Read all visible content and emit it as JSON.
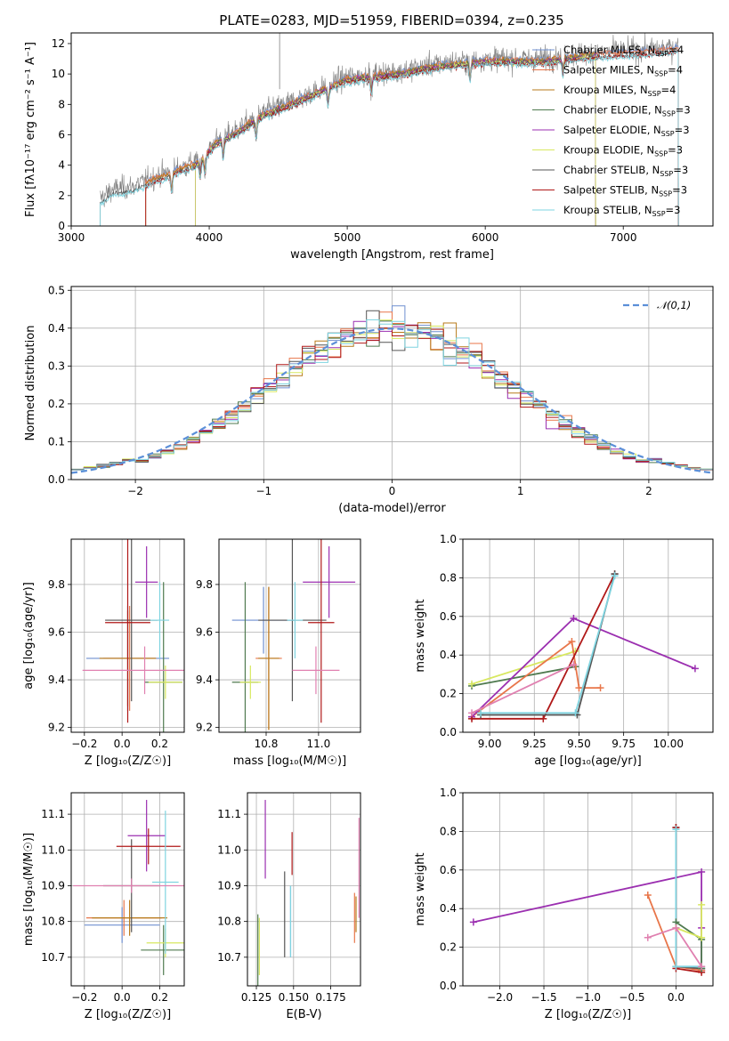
{
  "figure": {
    "title": "PLATE=0283, MJD=51959, FIBERID=0394, z=0.235"
  },
  "colors": {
    "Chabrier MILES": "#6f8fd0",
    "Salpeter MILES": "#e8764a",
    "Kroupa MILES": "#b77a1a",
    "Chabrier ELODIE": "#4f7a4f",
    "Salpeter ELODIE": "#9b2fb0",
    "Kroupa ELODIE": "#d8e860",
    "Chabrier STELIB": "#555555",
    "Salpeter STELIB": "#b01818",
    "Kroupa STELIB": "#7fd4e0",
    "data": "#808080",
    "normal": "#5b8fd8"
  },
  "legend_spectrum": [
    {
      "model": "Chabrier MILES",
      "label": "Chabrier MILES, N",
      "sub": "SSP",
      "suffix": "=4"
    },
    {
      "model": "Salpeter MILES",
      "label": "Salpeter MILES, N",
      "sub": "SSP",
      "suffix": "=4"
    },
    {
      "model": "Kroupa MILES",
      "label": "Kroupa MILES, N",
      "sub": "SSP",
      "suffix": "=4"
    },
    {
      "model": "Chabrier ELODIE",
      "label": "Chabrier ELODIE, N",
      "sub": "SSP",
      "suffix": "=3"
    },
    {
      "model": "Salpeter ELODIE",
      "label": "Salpeter ELODIE, N",
      "sub": "SSP",
      "suffix": "=3"
    },
    {
      "model": "Kroupa ELODIE",
      "label": "Kroupa ELODIE, N",
      "sub": "SSP",
      "suffix": "=3"
    },
    {
      "model": "Chabrier STELIB",
      "label": "Chabrier STELIB, N",
      "sub": "SSP",
      "suffix": "=3"
    },
    {
      "model": "Salpeter STELIB",
      "label": "Salpeter STELIB, N",
      "sub": "SSP",
      "suffix": "=3"
    },
    {
      "model": "Kroupa STELIB",
      "label": "Kroupa STELIB, N",
      "sub": "SSP",
      "suffix": "=3"
    }
  ],
  "chart_data": [
    {
      "id": "spectrum",
      "type": "line",
      "title": "PLATE=0283, MJD=51959, FIBERID=0394, z=0.235",
      "xlabel": "wavelength [Angstrom, rest frame]",
      "ylabel": "Flux [fλ10⁻¹⁷ erg cm⁻² s⁻¹ A⁻¹]",
      "xlim": [
        3000,
        7650
      ],
      "ylim": [
        0,
        12.7
      ],
      "xticks": [
        3000,
        4000,
        5000,
        6000,
        7000
      ],
      "yticks": [
        0,
        2,
        4,
        6,
        8,
        10,
        12
      ],
      "continuum": {
        "x": [
          3210,
          3300,
          3450,
          3600,
          3700,
          3800,
          3900,
          3950,
          4050,
          4200,
          4400,
          4600,
          4800,
          5000,
          5200,
          5400,
          5600,
          5800,
          6000,
          6200,
          6400,
          6600,
          6800,
          7000,
          7200,
          7400
        ],
        "y": [
          1.8,
          2.4,
          2.6,
          3.2,
          3.5,
          3.9,
          4.2,
          4.6,
          5.6,
          6.3,
          7.5,
          8.2,
          9.0,
          9.8,
          10.0,
          10.2,
          10.6,
          10.8,
          11.0,
          11.0,
          11.0,
          11.2,
          11.4,
          11.5,
          11.6,
          11.8
        ]
      },
      "model_ranges": {
        "Chabrier MILES": [
          3540,
          7400
        ],
        "Salpeter MILES": [
          3540,
          7400
        ],
        "Kroupa MILES": [
          3540,
          6800
        ],
        "Chabrier ELODIE": [
          3900,
          6800
        ],
        "Salpeter ELODIE": [
          3900,
          6800
        ],
        "Kroupa ELODIE": [
          3900,
          6800
        ],
        "Chabrier STELIB": [
          3210,
          7400
        ],
        "Salpeter STELIB": [
          3540,
          7400
        ],
        "Kroupa STELIB": [
          3210,
          7400
        ]
      }
    },
    {
      "id": "residuals",
      "type": "line",
      "xlabel": "(data-model)/error",
      "ylabel": "Normed distribution",
      "xlim": [
        -2.5,
        2.5
      ],
      "ylim": [
        0,
        0.51
      ],
      "xticks": [
        -2,
        -1,
        0,
        1,
        2
      ],
      "yticks": [
        0.0,
        0.1,
        0.2,
        0.3,
        0.4,
        0.5
      ],
      "bin_edges_start": -2.5,
      "bin_width": 0.1,
      "bins": 50,
      "legend": "𝒩(0,1)",
      "normal": {
        "mean": 0,
        "sigma": 1
      }
    },
    {
      "id": "age-vs-Z",
      "type": "scatter",
      "xlabel": "Z [log₁₀(Z/Z☉)]",
      "ylabel": "age  [log₁₀(age/yr)]",
      "xlim": [
        -0.27,
        0.33
      ],
      "ylim": [
        9.18,
        9.99
      ],
      "xticks": [
        -0.2,
        0.0,
        0.2
      ],
      "yticks": [
        9.2,
        9.4,
        9.6,
        9.8
      ],
      "points": [
        {
          "model": "Chabrier MILES",
          "x": 0.03,
          "y": 9.49,
          "xerr": 0.22,
          "yerr": 0.22
        },
        {
          "model": "Salpeter MILES",
          "x": 0.04,
          "y": 9.49,
          "xerr": 0.14,
          "yerr": 0.22
        },
        {
          "model": "Kroupa MILES",
          "x": 0.03,
          "y": 9.49,
          "xerr": 0.15,
          "yerr": 0.2
        },
        {
          "model": "Chabrier ELODIE",
          "x": 0.22,
          "y": 9.39,
          "xerr": 0.1,
          "yerr": 0.42
        },
        {
          "model": "Salpeter ELODIE",
          "x": 0.13,
          "y": 9.81,
          "xerr": 0.06,
          "yerr": 0.15
        },
        {
          "model": "Kroupa ELODIE",
          "x": 0.23,
          "y": 9.39,
          "xerr": 0.09,
          "yerr": 0.07
        },
        {
          "model": "Chabrier STELIB",
          "x": 0.05,
          "y": 9.65,
          "xerr": 0.14,
          "yerr": 0.34
        },
        {
          "model": "Salpeter STELIB",
          "x": 0.03,
          "y": 9.64,
          "xerr": 0.12,
          "yerr": 0.42
        },
        {
          "model": "Kroupa STELIB",
          "x": 0.2,
          "y": 9.65,
          "xerr": 0.05,
          "yerr": 0.16
        }
      ],
      "extra_points": [
        {
          "model": "Salpeter ELODIE",
          "x": 0.12,
          "y": 9.44,
          "xerr": 0.33,
          "yerr": 0.1,
          "color_override": "#e080b0"
        }
      ]
    },
    {
      "id": "age-vs-mass",
      "type": "scatter",
      "xlabel": "mass [log₁₀(M/M☉)]",
      "ylabel": "",
      "xlim": [
        10.62,
        11.16
      ],
      "ylim": [
        9.18,
        9.99
      ],
      "xticks": [
        10.8,
        11.0
      ],
      "yticks": [
        9.2,
        9.4,
        9.6,
        9.8
      ],
      "points": [
        {
          "model": "Chabrier MILES",
          "x": 10.79,
          "y": 9.65,
          "xerr": 0.12,
          "yerr": 0.14
        },
        {
          "model": "Salpeter MILES",
          "x": 10.81,
          "y": 9.49,
          "xerr": 0.05,
          "yerr": 0.3
        },
        {
          "model": "Kroupa MILES",
          "x": 10.81,
          "y": 9.49,
          "xerr": 0.04,
          "yerr": 0.3
        },
        {
          "model": "Chabrier ELODIE",
          "x": 10.72,
          "y": 9.39,
          "xerr": 0.05,
          "yerr": 0.42
        },
        {
          "model": "Salpeter ELODIE",
          "x": 11.04,
          "y": 9.81,
          "xerr": 0.1,
          "yerr": 0.15
        },
        {
          "model": "Kroupa ELODIE",
          "x": 10.74,
          "y": 9.39,
          "xerr": 0.04,
          "yerr": 0.07
        },
        {
          "model": "Chabrier STELIB",
          "x": 10.9,
          "y": 9.65,
          "xerr": 0.13,
          "yerr": 0.34
        },
        {
          "model": "Salpeter STELIB",
          "x": 11.01,
          "y": 9.64,
          "xerr": 0.05,
          "yerr": 0.42
        },
        {
          "model": "Kroupa STELIB",
          "x": 10.91,
          "y": 9.65,
          "xerr": 0.03,
          "yerr": 0.16
        }
      ],
      "extra_points": [
        {
          "model": "Salpeter ELODIE",
          "x": 10.99,
          "y": 9.44,
          "xerr": 0.09,
          "yerr": 0.1,
          "color_override": "#e080b0"
        }
      ]
    },
    {
      "id": "weight-vs-age",
      "type": "line",
      "xlabel": "age  [log₁₀(age/yr)]",
      "ylabel": "mass weight",
      "xlim": [
        8.85,
        10.25
      ],
      "ylim": [
        0,
        1.0
      ],
      "xticks": [
        9.0,
        9.25,
        9.5,
        9.75,
        10.0
      ],
      "yticks": [
        0.0,
        0.2,
        0.4,
        0.6,
        0.8,
        1.0
      ],
      "series": [
        {
          "model": "Chabrier ELODIE",
          "x": [
            8.9,
            9.48
          ],
          "y": [
            0.24,
            0.34
          ]
        },
        {
          "model": "Kroupa ELODIE",
          "x": [
            8.9,
            9.48
          ],
          "y": [
            0.25,
            0.42
          ]
        },
        {
          "model": "Salpeter MILES",
          "x": [
            8.9,
            9.46,
            9.5,
            9.62
          ],
          "y": [
            0.08,
            0.47,
            0.23,
            0.23
          ]
        },
        {
          "model": "Salpeter ELODIE",
          "x": [
            8.9,
            9.47,
            10.15
          ],
          "y": [
            0.08,
            0.59,
            0.33
          ]
        },
        {
          "model": "Salpeter STELIB",
          "x": [
            8.9,
            9.3,
            9.7
          ],
          "y": [
            0.07,
            0.07,
            0.82
          ]
        },
        {
          "model": "Chabrier STELIB",
          "x": [
            8.95,
            9.49,
            9.7
          ],
          "y": [
            0.09,
            0.09,
            0.82
          ]
        },
        {
          "model": "Kroupa STELIB",
          "x": [
            8.95,
            9.48,
            9.7
          ],
          "y": [
            0.1,
            0.1,
            0.81
          ]
        },
        {
          "model": "Salpeter ELODIE",
          "x": [
            8.9,
            9.47
          ],
          "y": [
            0.1,
            0.35
          ],
          "color_override": "#e080b0"
        }
      ]
    },
    {
      "id": "mass-vs-Z",
      "type": "scatter",
      "xlabel": "Z [log₁₀(Z/Z☉)]",
      "ylabel": "mass [log₁₀(M/M☉)]",
      "xlim": [
        -0.27,
        0.33
      ],
      "ylim": [
        10.62,
        11.16
      ],
      "xticks": [
        -0.2,
        0.0,
        0.2
      ],
      "yticks": [
        10.7,
        10.8,
        10.9,
        11.0,
        11.1
      ],
      "points": [
        {
          "model": "Chabrier MILES",
          "x": 0.0,
          "y": 10.79,
          "xerr": 0.2,
          "yerr": 0.05
        },
        {
          "model": "Salpeter MILES",
          "x": 0.01,
          "y": 10.81,
          "xerr": 0.2,
          "yerr": 0.05
        },
        {
          "model": "Kroupa MILES",
          "x": 0.04,
          "y": 10.81,
          "xerr": 0.2,
          "yerr": 0.05
        },
        {
          "model": "Chabrier ELODIE",
          "x": 0.22,
          "y": 10.72,
          "xerr": 0.12,
          "yerr": 0.07
        },
        {
          "model": "Salpeter ELODIE",
          "x": 0.13,
          "y": 11.04,
          "xerr": 0.1,
          "yerr": 0.1
        },
        {
          "model": "Kroupa ELODIE",
          "x": 0.23,
          "y": 10.74,
          "xerr": 0.1,
          "yerr": 0.04
        },
        {
          "model": "Chabrier STELIB",
          "x": 0.05,
          "y": 10.9,
          "xerr": 0.15,
          "yerr": 0.13
        },
        {
          "model": "Salpeter STELIB",
          "x": 0.14,
          "y": 11.01,
          "xerr": 0.17,
          "yerr": 0.05
        },
        {
          "model": "Kroupa STELIB",
          "x": 0.23,
          "y": 10.91,
          "xerr": 0.07,
          "yerr": 0.2
        }
      ],
      "extra_points": [
        {
          "model": "Salpeter ELODIE",
          "x": 0.05,
          "y": 10.9,
          "xerr": 0.31,
          "yerr": 0.02,
          "color_override": "#e080b0"
        }
      ]
    },
    {
      "id": "mass-vs-EBV",
      "type": "scatter",
      "xlabel": "E(B-V)",
      "ylabel": "",
      "xlim": [
        0.119,
        0.195
      ],
      "ylim": [
        10.62,
        11.16
      ],
      "xticks": [
        0.125,
        0.15,
        0.175
      ],
      "yticks": [
        10.7,
        10.8,
        10.9,
        11.0,
        11.1
      ],
      "points": [
        {
          "model": "Chabrier MILES",
          "x": 0.148,
          "y": 10.8,
          "xerr": 0,
          "yerr": 0.1
        },
        {
          "model": "Salpeter MILES",
          "x": 0.191,
          "y": 10.81,
          "xerr": 0,
          "yerr": 0.07
        },
        {
          "model": "Kroupa MILES",
          "x": 0.192,
          "y": 10.82,
          "xerr": 0,
          "yerr": 0.05
        },
        {
          "model": "Chabrier ELODIE",
          "x": 0.126,
          "y": 10.72,
          "xerr": 0,
          "yerr": 0.1
        },
        {
          "model": "Salpeter ELODIE",
          "x": 0.131,
          "y": 11.03,
          "xerr": 0,
          "yerr": 0.11
        },
        {
          "model": "Kroupa ELODIE",
          "x": 0.127,
          "y": 10.73,
          "xerr": 0,
          "yerr": 0.08
        },
        {
          "model": "Chabrier STELIB",
          "x": 0.144,
          "y": 10.82,
          "xerr": 0,
          "yerr": 0.12
        },
        {
          "model": "Salpeter STELIB",
          "x": 0.149,
          "y": 10.99,
          "xerr": 0,
          "yerr": 0.06
        },
        {
          "model": "Kroupa STELIB",
          "x": 0.148,
          "y": 10.8,
          "xerr": 0,
          "yerr": 0.1
        }
      ],
      "extra_points": [
        {
          "model": "Salpeter ELODIE",
          "x": 0.194,
          "y": 10.95,
          "xerr": 0,
          "yerr": 0.14,
          "color_override": "#e080b0"
        }
      ]
    },
    {
      "id": "weight-vs-Z",
      "type": "line",
      "xlabel": "Z [log₁₀(Z/Z☉)]",
      "ylabel": "mass weight",
      "xlim": [
        -2.42,
        0.42
      ],
      "ylim": [
        0,
        1.0
      ],
      "xticks": [
        -2.0,
        -1.5,
        -1.0,
        -0.5,
        0.0
      ],
      "yticks": [
        0.0,
        0.2,
        0.4,
        0.6,
        0.8,
        1.0
      ],
      "series": [
        {
          "model": "Salpeter ELODIE",
          "x": [
            -2.3,
            0.29,
            0.29,
            0.29
          ],
          "y": [
            0.33,
            0.59,
            0.3,
            0.08
          ]
        },
        {
          "model": "Salpeter MILES",
          "x": [
            -0.32,
            0.0,
            0.29
          ],
          "y": [
            0.47,
            0.1,
            0.08
          ]
        },
        {
          "model": "Chabrier STELIB",
          "x": [
            0.0,
            0.0,
            0.29
          ],
          "y": [
            0.82,
            0.1,
            0.09
          ]
        },
        {
          "model": "Salpeter STELIB",
          "x": [
            0.0,
            0.0,
            0.29
          ],
          "y": [
            0.82,
            0.09,
            0.07
          ]
        },
        {
          "model": "Kroupa STELIB",
          "x": [
            0.0,
            0.0,
            0.29,
            0.29
          ],
          "y": [
            0.81,
            0.1,
            0.1,
            0.09
          ]
        },
        {
          "model": "Chabrier ELODIE",
          "x": [
            0.0,
            0.29,
            0.29
          ],
          "y": [
            0.33,
            0.24,
            0.09
          ]
        },
        {
          "model": "Kroupa ELODIE",
          "x": [
            0.0,
            0.29,
            0.29
          ],
          "y": [
            0.3,
            0.25,
            0.42
          ]
        },
        {
          "model": "Salpeter ELODIE",
          "x": [
            -0.32,
            0.0,
            0.29
          ],
          "y": [
            0.25,
            0.3,
            0.1
          ],
          "color_override": "#e080b0"
        }
      ]
    }
  ]
}
